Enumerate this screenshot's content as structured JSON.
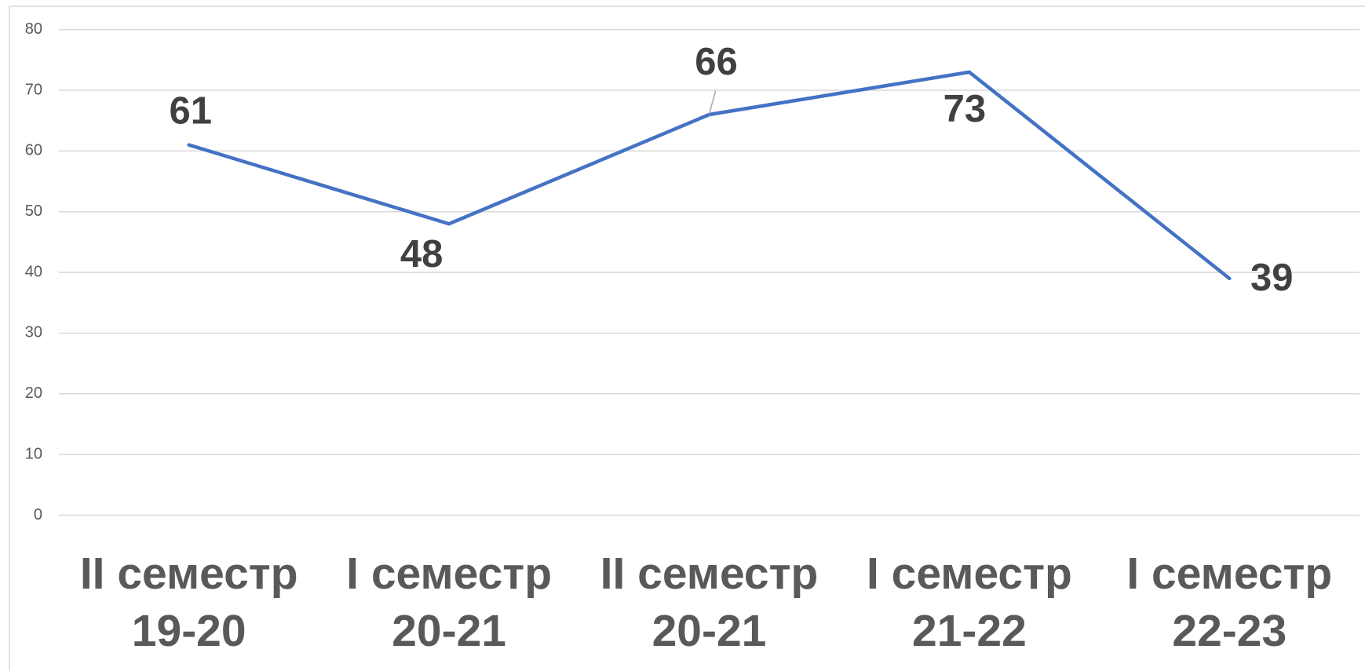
{
  "chart_data": {
    "type": "line",
    "categories": [
      "II семестр 19-20",
      "I семестр 20-21",
      "II семестр 20-21",
      "I семестр 21-22",
      "I семестр 22-23"
    ],
    "series": [
      {
        "color": "#4472c4",
        "values": [
          61,
          48,
          66,
          73,
          39
        ]
      }
    ],
    "ylim": [
      0,
      80
    ],
    "yticks": [
      0,
      10,
      20,
      30,
      40,
      50,
      60,
      70,
      80
    ],
    "grid": true
  }
}
